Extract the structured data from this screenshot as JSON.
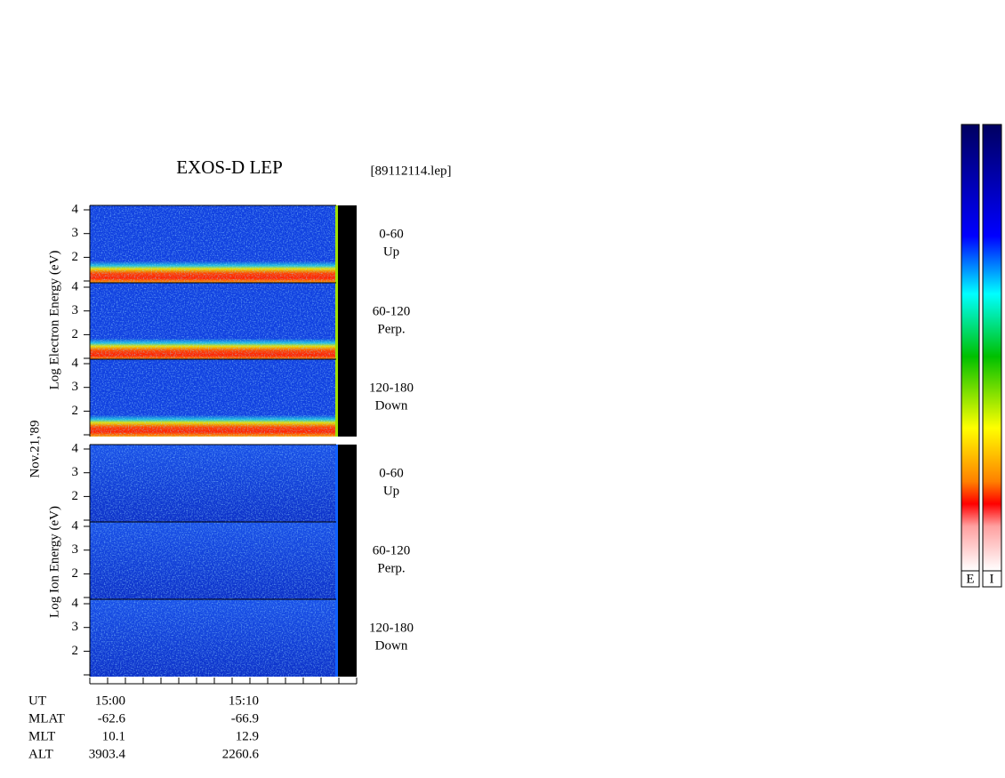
{
  "header": {
    "title": "EXOS-D LEP",
    "file": "[89112114.lep]"
  },
  "date": "Nov.21,'89",
  "electron": {
    "axis_label": "Log Electron Energy (eV)",
    "yticks": [
      "4",
      "3",
      "2"
    ],
    "panels": [
      {
        "angle": "0-60",
        "direction": "Up"
      },
      {
        "angle": "60-120",
        "direction": "Perp."
      },
      {
        "angle": "120-180",
        "direction": "Down"
      }
    ]
  },
  "ion": {
    "axis_label": "Log Ion Energy (eV)",
    "yticks": [
      "4",
      "3",
      "2"
    ],
    "panels": [
      {
        "angle": "0-60",
        "direction": "Up"
      },
      {
        "angle": "60-120",
        "direction": "Perp."
      },
      {
        "angle": "120-180",
        "direction": "Down"
      }
    ]
  },
  "footer": {
    "rows": [
      {
        "label": "UT",
        "values": [
          "15:00",
          "15:10"
        ]
      },
      {
        "label": "MLAT",
        "values": [
          "-62.6",
          "-66.9"
        ]
      },
      {
        "label": "MLT",
        "values": [
          "10.1",
          "12.9"
        ]
      },
      {
        "label": "ALT",
        "values": [
          "3903.4",
          "2260.6"
        ]
      }
    ]
  },
  "colorbars": [
    "E",
    "I"
  ]
}
